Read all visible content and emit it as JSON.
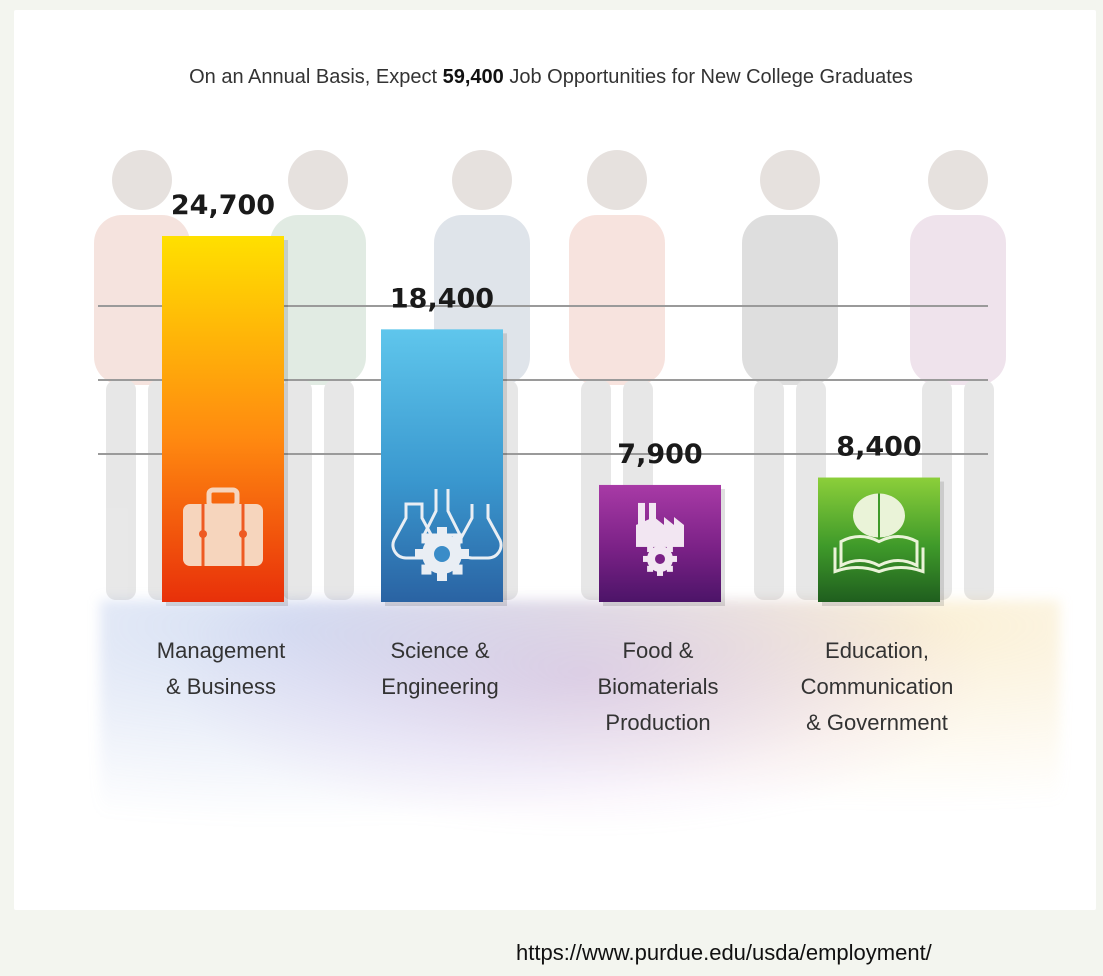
{
  "chart_data": {
    "type": "bar",
    "title": {
      "before": "On an Annual Basis, Expect ",
      "highlight": "59,400",
      "after": " Job Opportunities for New College Graduates"
    },
    "categories": [
      [
        "Management",
        "& Business"
      ],
      [
        "Science &",
        "Engineering"
      ],
      [
        "Food &",
        "Biomaterials",
        "Production"
      ],
      [
        "Education,",
        "Communication",
        "& Government"
      ]
    ],
    "values": [
      24700,
      18400,
      7900,
      8400
    ],
    "value_labels": [
      "24,700",
      "18,400",
      "7,900",
      "8,400"
    ],
    "icons": [
      "briefcase-icon",
      "lab-flasks-gear-icon",
      "factory-gear-icon",
      "brain-book-icon"
    ],
    "colors": [
      [
        "#ffe000",
        "#ff8a10",
        "#e8300a"
      ],
      [
        "#5fc6ec",
        "#3a98cf",
        "#2a63a3"
      ],
      [
        "#a83aa6",
        "#7a2186",
        "#4c1468"
      ],
      [
        "#8ccf3a",
        "#3f9a2a",
        "#1f5e1e"
      ]
    ],
    "ylim": [
      0,
      30000
    ],
    "grid": true
  },
  "source_url": "https://www.purdue.edu/usda/employment/"
}
